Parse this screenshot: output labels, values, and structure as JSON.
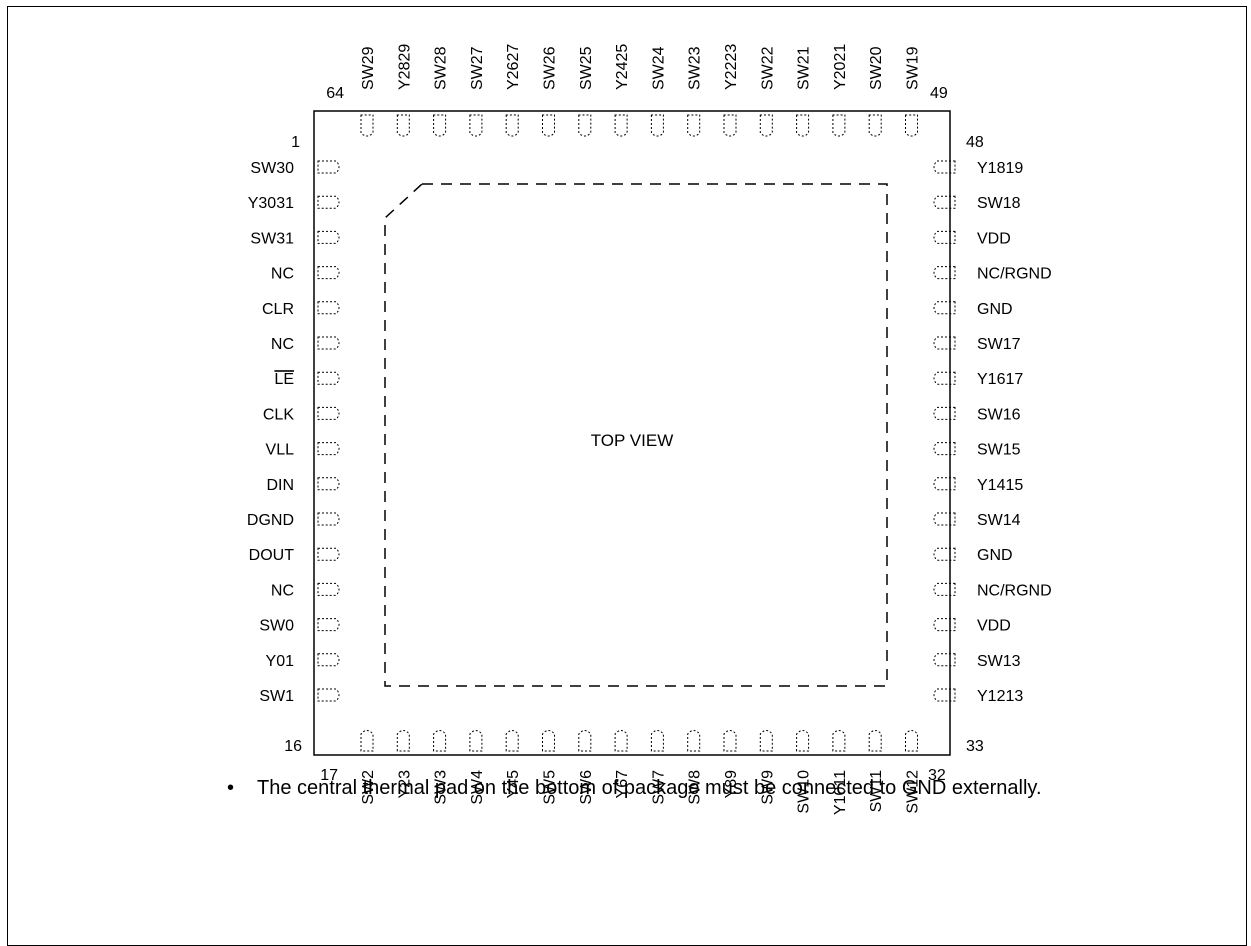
{
  "package": {
    "center_label": "TOP VIEW",
    "corner_numbers": {
      "left_first": "1",
      "left_last": "16",
      "bottom_first": "17",
      "bottom_last": "32",
      "right_first": "33",
      "right_last": "48",
      "top_first": "49",
      "top_last": "64"
    },
    "left_pins": [
      "SW30",
      "Y3031",
      "SW31",
      "NC",
      "CLR",
      "NC",
      "LE",
      "CLK",
      "VLL",
      "DIN",
      "DGND",
      "DOUT",
      "NC",
      "SW0",
      "Y01",
      "SW1"
    ],
    "right_pins": [
      "Y1819",
      "SW18",
      "VDD",
      "NC/RGND",
      "GND",
      "SW17",
      "Y1617",
      "SW16",
      "SW15",
      "Y1415",
      "SW14",
      "GND",
      "NC/RGND",
      "VDD",
      "SW13",
      "Y1213"
    ],
    "top_pins": [
      "SW29",
      "Y2829",
      "SW28",
      "SW27",
      "Y2627",
      "SW26",
      "SW25",
      "Y2425",
      "SW24",
      "SW23",
      "Y2223",
      "SW22",
      "SW21",
      "Y2021",
      "SW20",
      "SW19"
    ],
    "bottom_pins": [
      "SW2",
      "Y23",
      "SW3",
      "SW4",
      "Y45",
      "SW5",
      "SW6",
      "Y67",
      "SW7",
      "SW8",
      "Y89",
      "SW9",
      "SW10",
      "Y1011",
      "SW11",
      "SW12"
    ],
    "overlined_pins": [
      "LE"
    ]
  },
  "note": {
    "bullet": "•",
    "text": "The central thermal pad on the bottom of package must be connected to GND externally."
  }
}
